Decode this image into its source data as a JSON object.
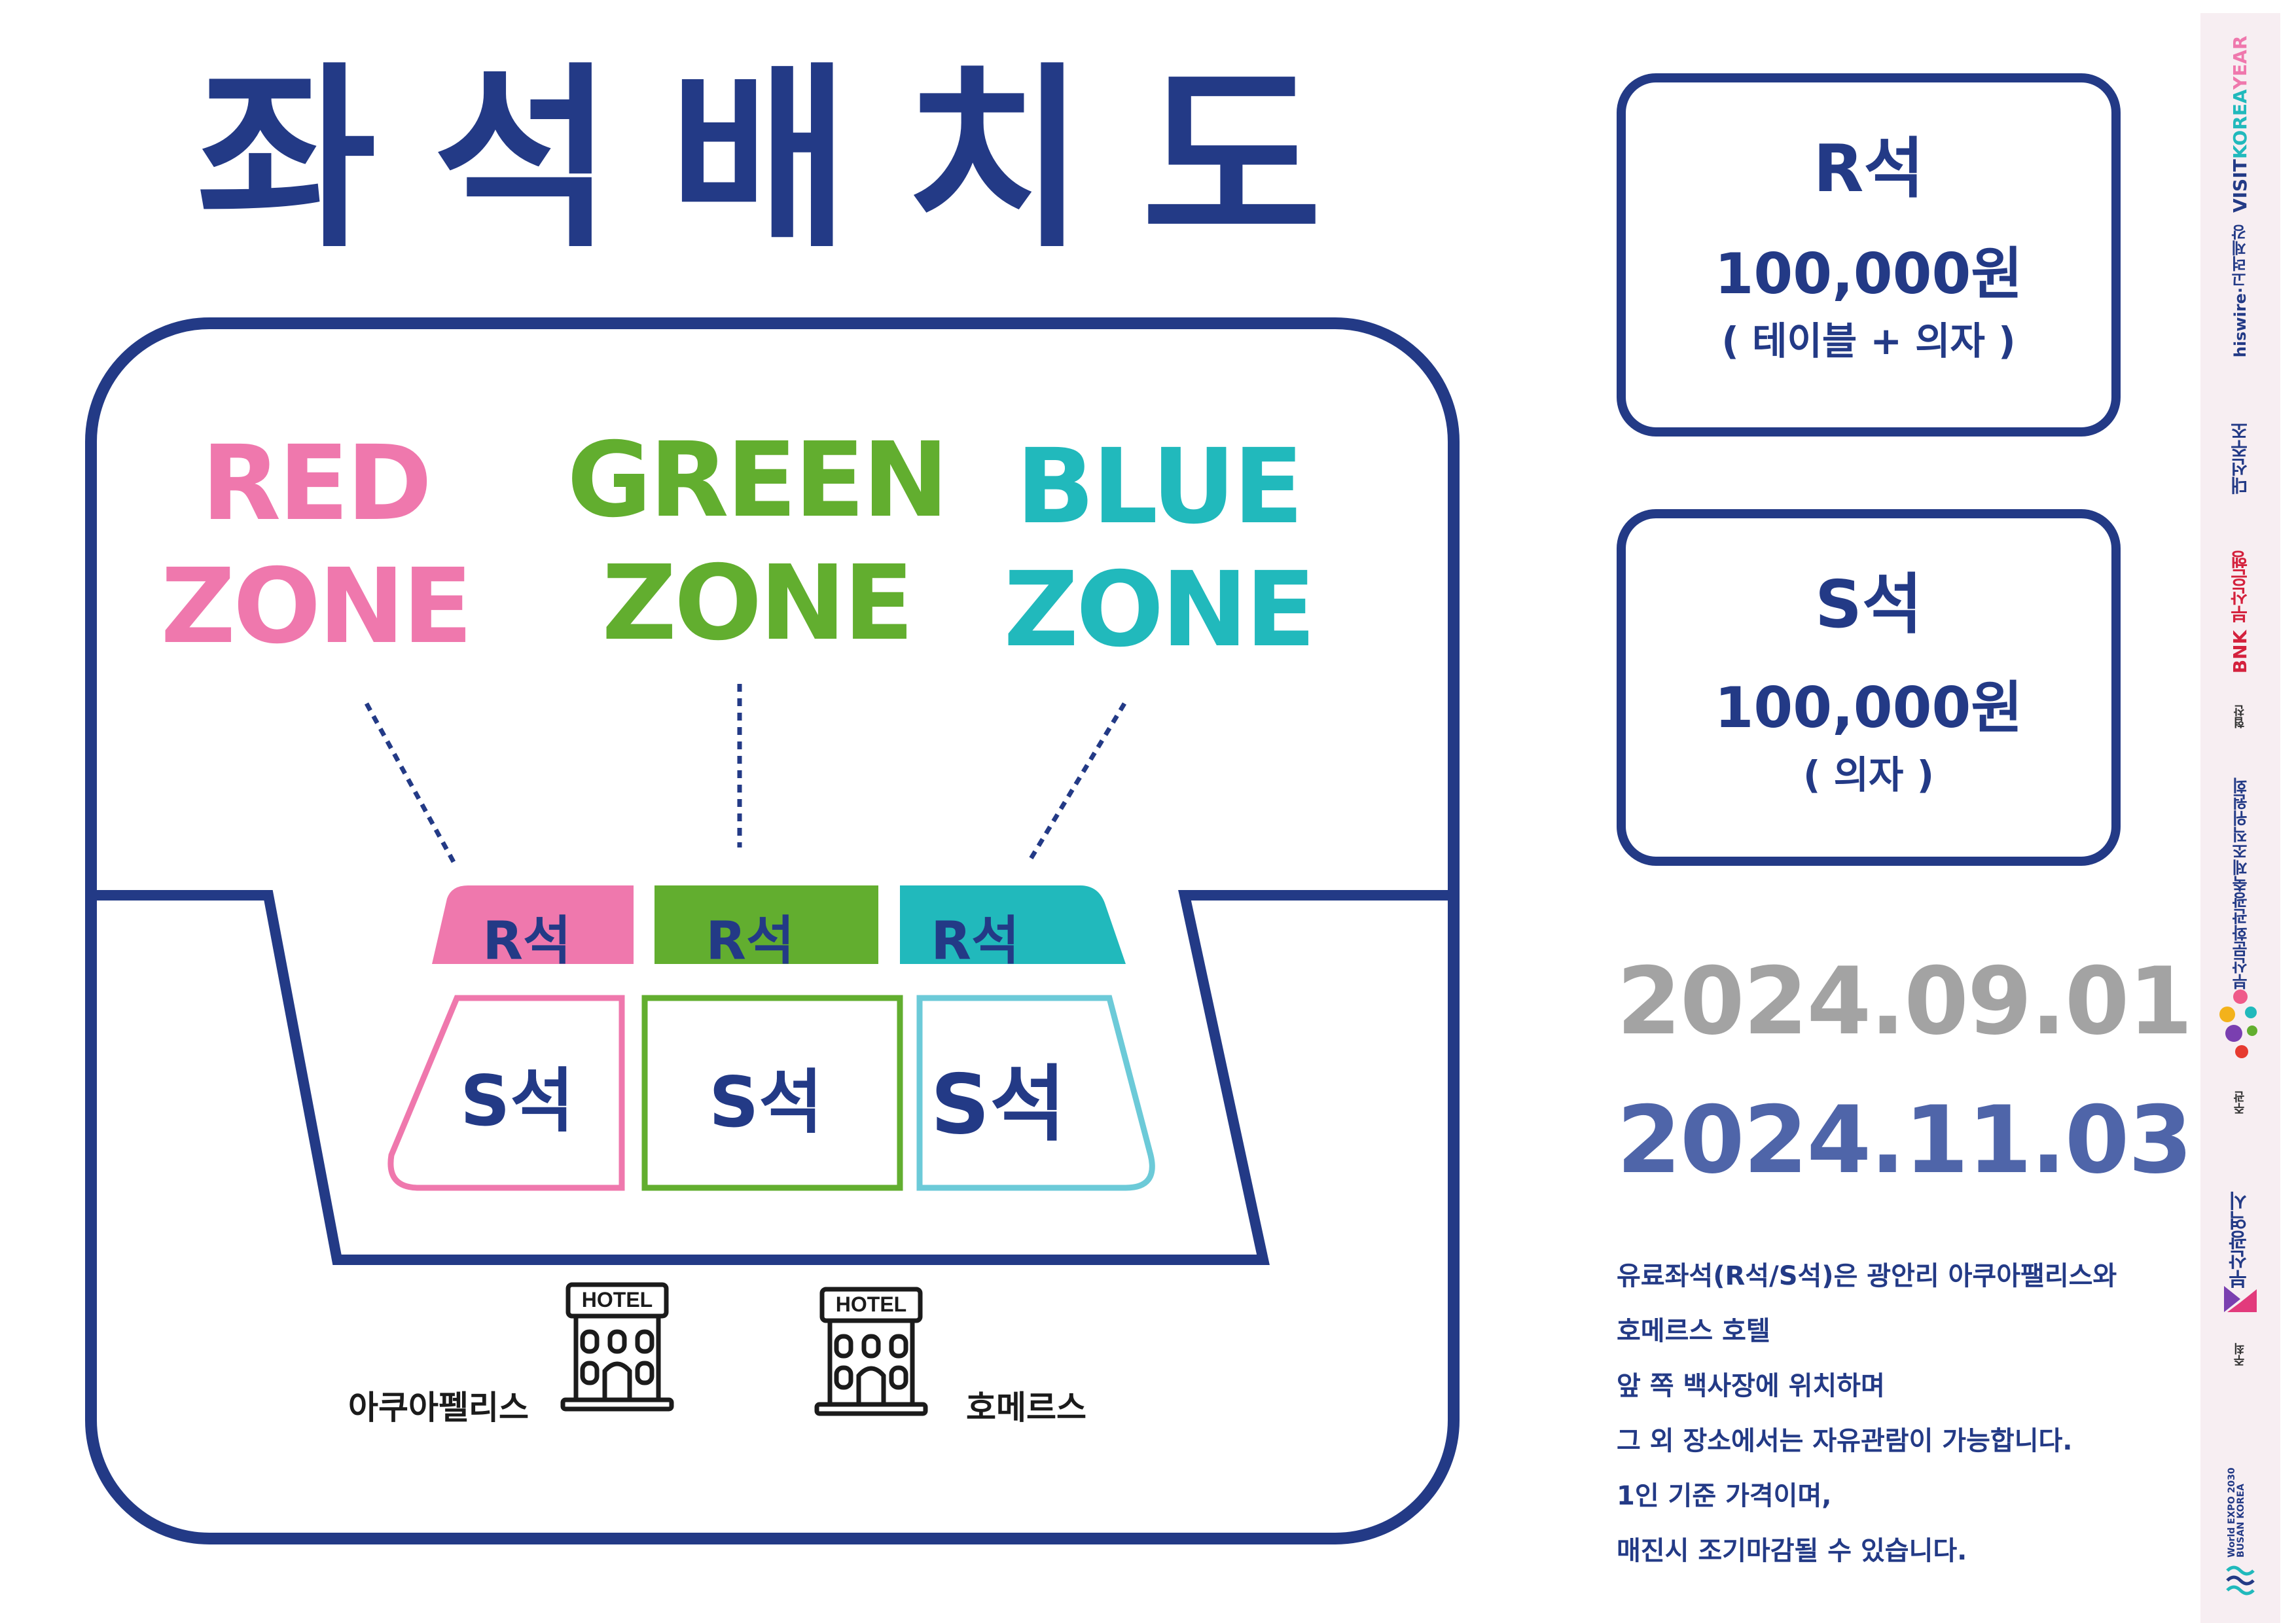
{
  "title": {
    "chars": [
      "좌",
      "석",
      "배",
      "치",
      "도"
    ]
  },
  "zones": {
    "red": {
      "line1": "RED",
      "line2": "ZONE",
      "color": "#ef78ad"
    },
    "green": {
      "line1": "GREEN",
      "line2": "ZONE",
      "color": "#62ae2f"
    },
    "blue": {
      "line1": "BLUE",
      "line2": "ZONE",
      "color": "#21b9bc"
    }
  },
  "seat_map": {
    "r_labels": [
      "R석",
      "R석",
      "R석"
    ],
    "s_labels": [
      "S석",
      "S석",
      "S석"
    ],
    "outline_color": "#233a86"
  },
  "hotels": {
    "left": {
      "name": "아쿠아펠리스",
      "sign": "HOTEL",
      "icon": "hotel-building-icon"
    },
    "right": {
      "name": "호메르스",
      "sign": "HOTEL",
      "icon": "hotel-building-icon"
    }
  },
  "pricing": {
    "r_seat": {
      "title": "R석",
      "price": "100,000원",
      "desc": "( 테이블 + 의자 )"
    },
    "s_seat": {
      "title": "S석",
      "price": "100,000원",
      "desc": "( 의자 )"
    }
  },
  "dates": {
    "start": "2024.09.01",
    "end": "2024.11.03"
  },
  "notes": [
    "유료좌석(R석/S석)은 광안리 아쿠아팰리스와",
    "호메르스 호텔",
    "앞 쪽 백사장에 위치하며",
    "그 외 장소에서는 자유관람이 가능합니다.",
    "1인 기준 가격이며,",
    "매진시 조기마감될 수 있습니다."
  ],
  "sponsors": {
    "visit_korea": [
      "VISIT",
      "KOREA",
      "YEAR"
    ],
    "hiswire": "hiswire·고려제강",
    "daesun": "대선주조",
    "bnk": "BNK 부산은행",
    "hyeopchan_label": "협찬",
    "committee": "부산문화관광축제조직위원회",
    "jugwan_label": "주관",
    "busan_city": "부산광역시",
    "juchoe_label": "주최",
    "expo": "World EXPO 2030 BUSAN KOREA"
  },
  "colors": {
    "navy": "#233a86",
    "pink": "#ef78ad",
    "green": "#62ae2f",
    "teal": "#21b9bc",
    "gray_date": "#a3a3a3",
    "blue_date": "#4f65a9"
  }
}
